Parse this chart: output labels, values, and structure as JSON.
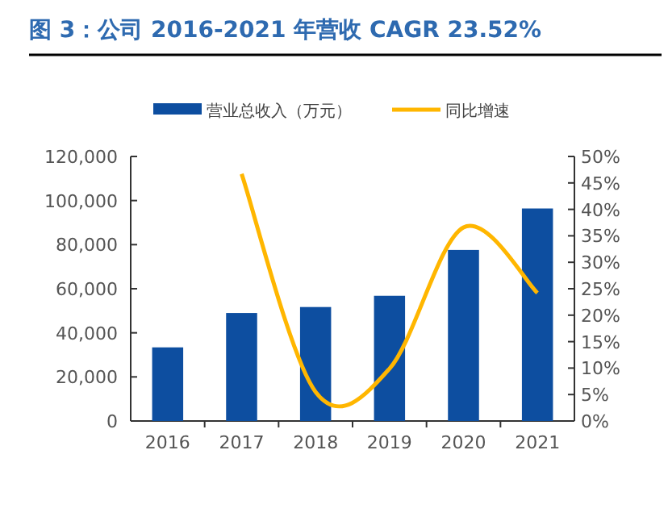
{
  "chart_data": {
    "type": "bar",
    "title": "图 3：公司 2016-2021 年营收 CAGR 23.52%",
    "categories": [
      "2016",
      "2017",
      "2018",
      "2019",
      "2020",
      "2021"
    ],
    "series": [
      {
        "name": "营业总收入（万元）",
        "color": "#0d4ea0",
        "values": [
          33400,
          49000,
          51700,
          56800,
          77600,
          96400
        ]
      },
      {
        "name": "同比增速",
        "type": "line",
        "axis": "y2",
        "color": "#ffb600",
        "values": [
          null,
          46.7,
          5.5,
          9.9,
          36.6,
          24.2
        ]
      }
    ],
    "ylim": [
      0,
      120000
    ],
    "yticks": [
      {
        "value": 0,
        "label": "0"
      },
      {
        "value": 20000,
        "label": "20,000"
      },
      {
        "value": 40000,
        "label": "40,000"
      },
      {
        "value": 60000,
        "label": "60,000"
      },
      {
        "value": 80000,
        "label": "80,000"
      },
      {
        "value": 100000,
        "label": "100,000"
      },
      {
        "value": 120000,
        "label": "120,000"
      }
    ],
    "y2lim": [
      0,
      50
    ],
    "y2ticks": [
      {
        "value": 0,
        "label": "0%"
      },
      {
        "value": 5,
        "label": "5%"
      },
      {
        "value": 10,
        "label": "10%"
      },
      {
        "value": 15,
        "label": "15%"
      },
      {
        "value": 20,
        "label": "20%"
      },
      {
        "value": 25,
        "label": "25%"
      },
      {
        "value": 30,
        "label": "30%"
      },
      {
        "value": 35,
        "label": "35%"
      },
      {
        "value": 40,
        "label": "40%"
      },
      {
        "value": 45,
        "label": "45%"
      },
      {
        "value": 50,
        "label": "50%"
      }
    ],
    "legend": "top",
    "grid": false
  }
}
